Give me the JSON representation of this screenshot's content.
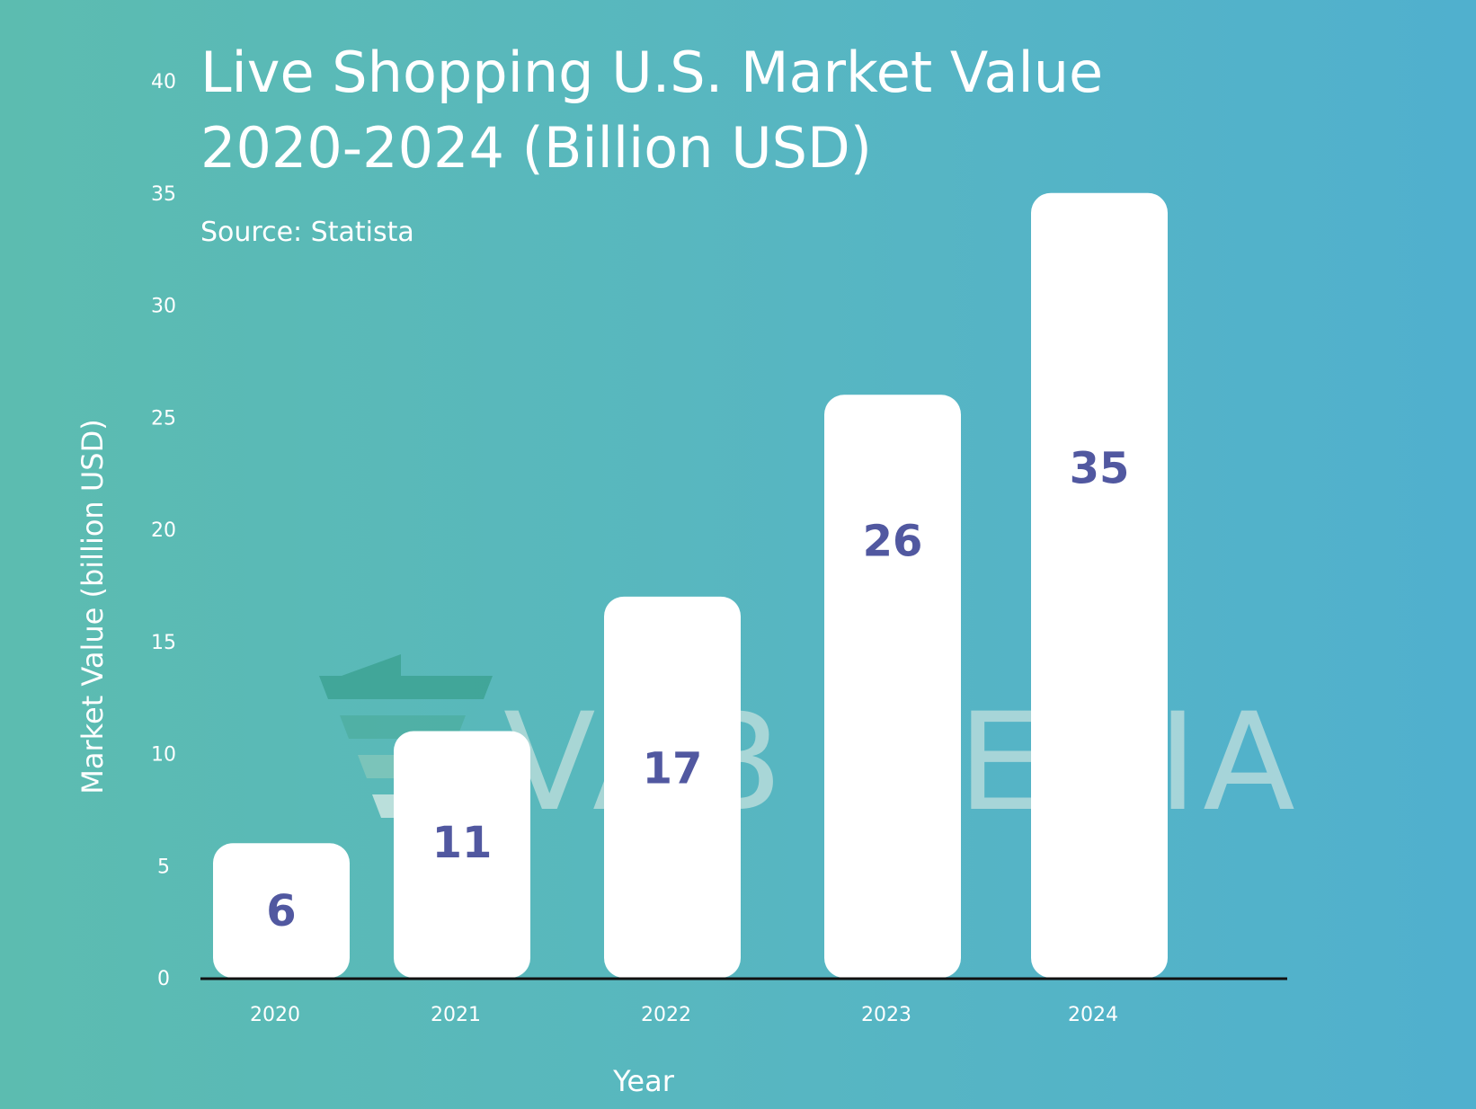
{
  "title_lines": [
    "Live Shopping U.S. Market Value",
    "2020-2024 (Billion USD)"
  ],
  "subtitle": "Source: Statista",
  "watermark": {
    "text": "VAB MEDIA"
  },
  "colors": {
    "bar": "#ffffff",
    "label": "#5158a0",
    "axis": "#111111",
    "watermark": "#4aaea2",
    "watermark_light": "#cfe6e2"
  },
  "chart_data": {
    "type": "bar",
    "title": "Live Shopping U.S. Market Value 2020-2024 (Billion USD)",
    "subtitle": "Source: Statista",
    "categories": [
      "2020",
      "2021",
      "2022",
      "2023",
      "2024"
    ],
    "values": [
      6,
      11,
      17,
      26,
      35
    ],
    "data_labels": [
      "6",
      "11",
      "17",
      "26",
      "35"
    ],
    "xlabel": "Year",
    "ylabel": "Market Value (billion USD)",
    "ylim": [
      0,
      40
    ],
    "yticks": [
      0,
      5,
      10,
      15,
      20,
      25,
      30,
      35,
      40
    ],
    "grid": false,
    "legend": "none"
  }
}
